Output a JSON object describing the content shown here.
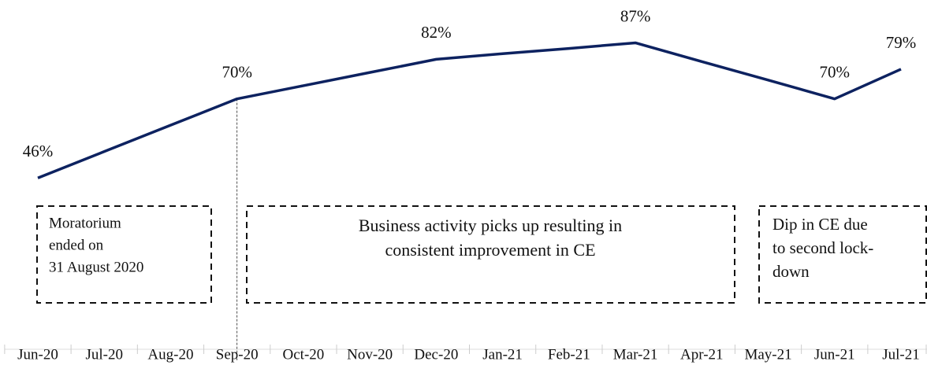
{
  "chart_data": {
    "type": "line",
    "categories": [
      "Jun-20",
      "Jul-20",
      "Aug-20",
      "Sep-20",
      "Oct-20",
      "Nov-20",
      "Dec-20",
      "Jan-21",
      "Feb-21",
      "Mar-21",
      "Apr-21",
      "May-21",
      "Jun-21",
      "Jul-21"
    ],
    "series": [
      {
        "color": "#0d2260",
        "values": [
          46,
          54,
          62,
          70,
          74,
          78,
          82,
          83.7,
          85.3,
          87,
          81.3,
          75.7,
          70,
          79
        ],
        "value_labels": [
          "46%",
          null,
          null,
          "70%",
          null,
          null,
          "82%",
          null,
          null,
          "87%",
          null,
          null,
          "70%",
          "79%"
        ]
      }
    ],
    "ylim": [
      -6,
      100
    ],
    "annotations": [
      {
        "lines": [
          "Moratorium",
          "ended on",
          "31 August 2020"
        ]
      },
      {
        "lines": [
          "Business activity picks up resulting in",
          "consistent improvement in CE"
        ]
      },
      {
        "lines": [
          "Dip in CE due",
          "to second lock-",
          "down"
        ]
      }
    ]
  }
}
